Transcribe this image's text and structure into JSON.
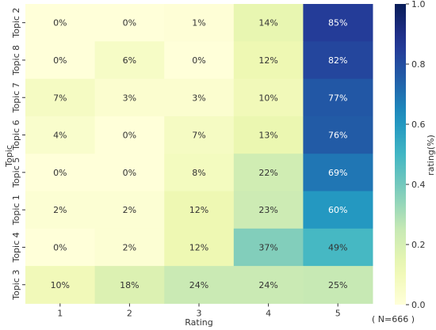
{
  "chart_data": {
    "type": "heatmap",
    "title": "",
    "xlabel": "Rating",
    "ylabel": "Topic",
    "x_categories": [
      "1",
      "2",
      "3",
      "4",
      "5"
    ],
    "y_categories": [
      "Topic 2",
      "Topic 8",
      "Topic 7",
      "Topic 6",
      "Topic 5",
      "Topic 1",
      "Topic 4",
      "Topic 3"
    ],
    "values": [
      [
        0,
        0,
        1,
        14,
        85
      ],
      [
        0,
        6,
        0,
        12,
        82
      ],
      [
        7,
        3,
        3,
        10,
        77
      ],
      [
        4,
        0,
        7,
        13,
        76
      ],
      [
        0,
        0,
        8,
        22,
        69
      ],
      [
        2,
        2,
        12,
        23,
        60
      ],
      [
        0,
        2,
        12,
        37,
        49
      ],
      [
        10,
        18,
        24,
        24,
        25
      ]
    ],
    "value_format": "percent",
    "colorbar": {
      "label": "rating(%)",
      "range": [
        0.0,
        1.0
      ],
      "ticks": [
        "0.0",
        "0.2",
        "0.4",
        "0.6",
        "0.8",
        "1.0"
      ],
      "colormap": "YlGnBu"
    },
    "grid": false,
    "annotation": "( N=666 )"
  }
}
